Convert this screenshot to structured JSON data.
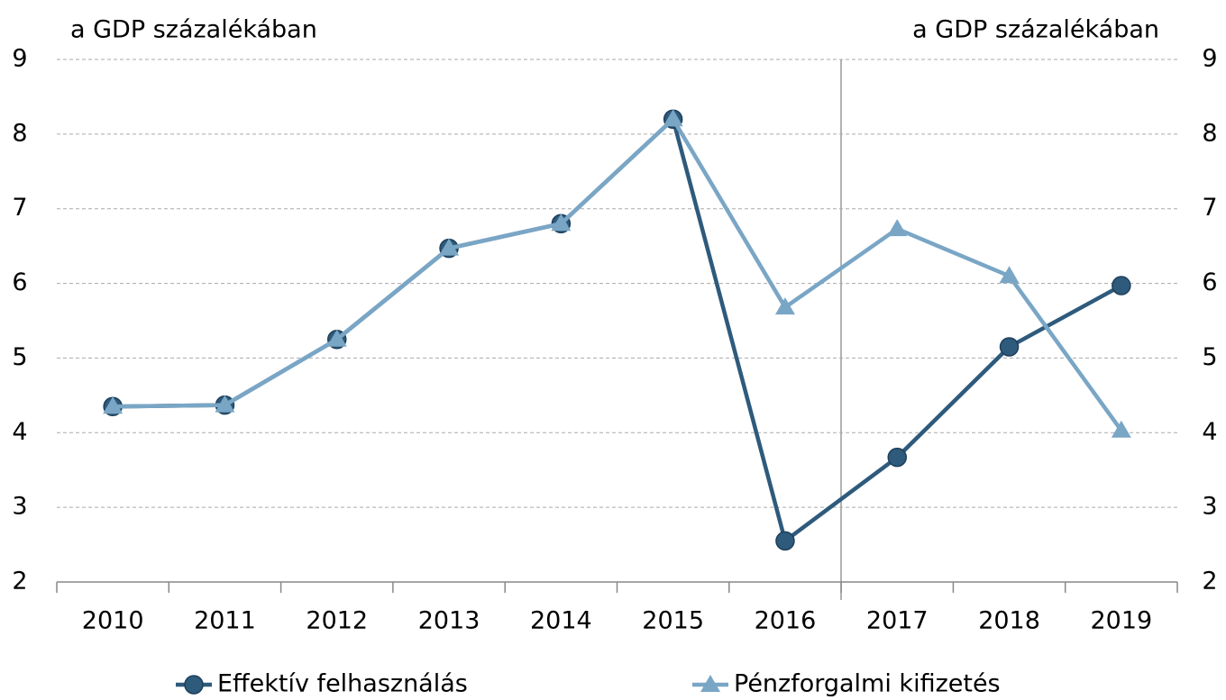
{
  "chart_data": {
    "type": "line",
    "y_label": "a GDP százalékában",
    "y2_label": "a GDP százalékában",
    "categories": [
      "2010",
      "2011",
      "2012",
      "2013",
      "2014",
      "2015",
      "2016",
      "2017",
      "2018",
      "2019"
    ],
    "series": [
      {
        "name": "Effektív felhasználás",
        "color": "#2e5a7c",
        "marker": "circle",
        "values": [
          4.35,
          4.37,
          5.25,
          6.47,
          6.8,
          8.2,
          2.55,
          3.67,
          5.15,
          5.97
        ]
      },
      {
        "name": "Pénzforgalmi kifizetés",
        "color": "#7aa6c6",
        "marker": "triangle",
        "values": [
          4.35,
          4.37,
          5.25,
          6.47,
          6.8,
          8.2,
          5.68,
          6.73,
          6.1,
          4.03
        ]
      }
    ],
    "ylim": [
      2,
      9
    ],
    "yticks": [
      2,
      3,
      4,
      5,
      6,
      7,
      8,
      9
    ],
    "y2lim": [
      2,
      9
    ],
    "y2ticks": [
      2,
      3,
      4,
      5,
      6,
      7,
      8,
      9
    ],
    "grid": true,
    "legend": "bottom"
  }
}
